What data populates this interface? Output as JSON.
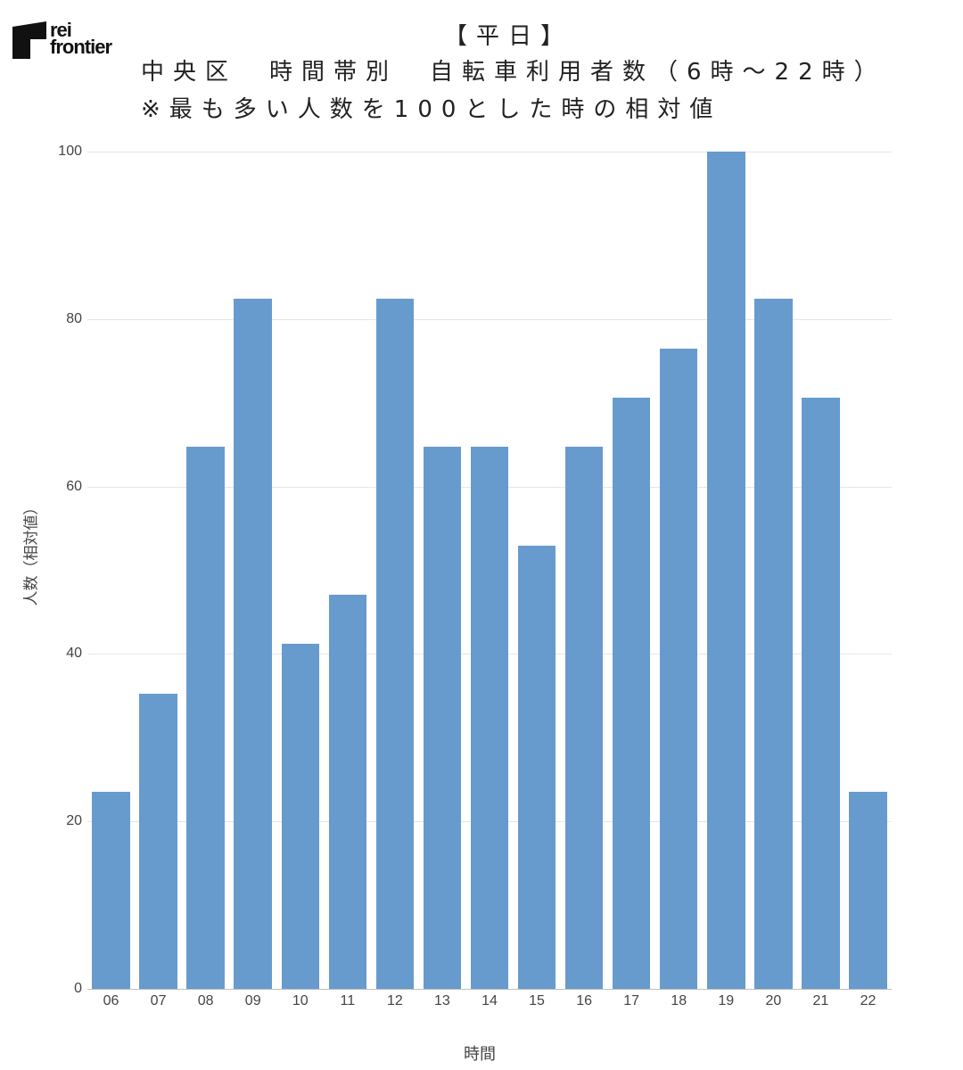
{
  "logo": {
    "line1": "rei",
    "line2": "frontier"
  },
  "title": {
    "line1": "【平日】",
    "line2": "中央区　時間帯別　自転車利用者数（6時～22時）",
    "line3": "※最も多い人数を100とした時の相対値"
  },
  "chart_data": {
    "type": "bar",
    "title": "【平日】 中央区 時間帯別 自転車利用者数（6時～22時） ※最も多い人数を100とした時の相対値",
    "xlabel": "時間",
    "ylabel": "人数（相対値）",
    "categories": [
      "06",
      "07",
      "08",
      "09",
      "10",
      "11",
      "12",
      "13",
      "14",
      "15",
      "16",
      "17",
      "18",
      "19",
      "20",
      "21",
      "22"
    ],
    "values": [
      23.5,
      35.3,
      64.7,
      82.4,
      41.2,
      47.1,
      82.4,
      64.7,
      64.7,
      52.9,
      64.7,
      70.6,
      76.5,
      100,
      82.4,
      70.6,
      23.5
    ],
    "ylim": [
      0,
      100
    ],
    "yticks": [
      0,
      20,
      40,
      60,
      80,
      100
    ],
    "grid": true,
    "legend": null,
    "bar_color": "#679bcd"
  }
}
